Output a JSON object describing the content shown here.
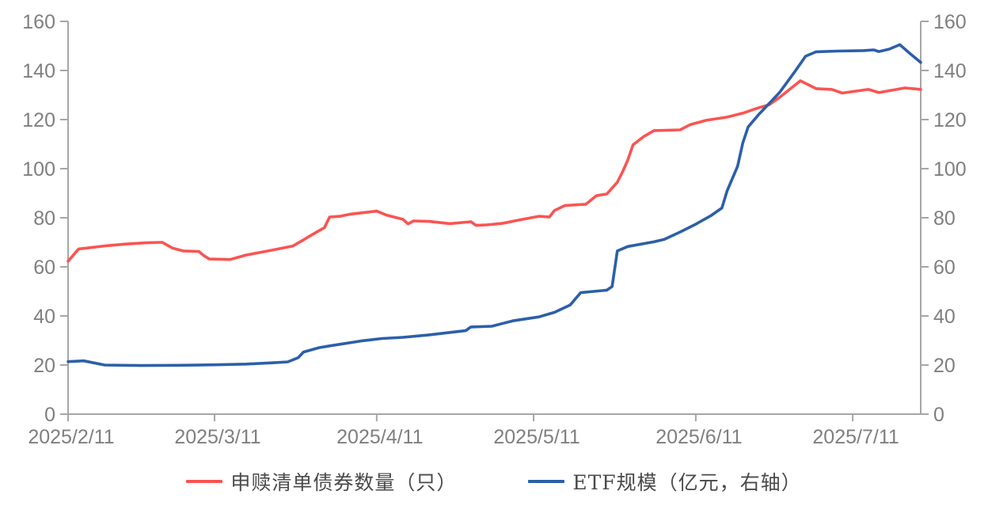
{
  "colors": {
    "red_series": "#FA5452",
    "blue_series": "#2C5FA9",
    "axis_line": "#A6A6A6",
    "tick_text": "#7F7F7F",
    "legend_text": "#4A4A4A",
    "background": "#FFFFFF"
  },
  "legend": {
    "items": [
      {
        "label": "申赎清单债券数量（只）",
        "color": "#FA5452"
      },
      {
        "label": "ETF规模（亿元，右轴）",
        "color": "#2C5FA9"
      }
    ]
  },
  "chart_data": {
    "type": "line",
    "title": "",
    "xlabel": "",
    "ylabel": "",
    "grid": false,
    "legend_position": "bottom",
    "x_axis": {
      "start": "2025/2/11",
      "end": "2025/7/24",
      "ticks": [
        "2025/2/11",
        "2025/3/11",
        "2025/4/11",
        "2025/5/11",
        "2025/6/11",
        "2025/7/11"
      ]
    },
    "y_axis_left": {
      "min": 0,
      "max": 160,
      "ticks": [
        0,
        20,
        40,
        60,
        80,
        100,
        120,
        140,
        160
      ]
    },
    "y_axis_right": {
      "min": 0,
      "max": 160,
      "ticks": [
        0,
        20,
        40,
        60,
        80,
        100,
        120,
        140,
        160
      ]
    },
    "series": [
      {
        "name": "申赎清单债券数量（只）",
        "axis": "left",
        "color": "#FA5452",
        "points": [
          [
            "2025/2/11",
            62.3
          ],
          [
            "2025/2/13",
            67.3
          ],
          [
            "2025/2/16",
            68.0
          ],
          [
            "2025/2/18",
            68.5
          ],
          [
            "2025/2/22",
            69.3
          ],
          [
            "2025/2/26",
            69.8
          ],
          [
            "2025/3/1",
            70.0
          ],
          [
            "2025/3/3",
            67.6
          ],
          [
            "2025/3/5",
            66.5
          ],
          [
            "2025/3/8",
            66.3
          ],
          [
            "2025/3/9",
            64.5
          ],
          [
            "2025/3/10",
            63.2
          ],
          [
            "2025/3/14",
            63.0
          ],
          [
            "2025/3/17",
            64.8
          ],
          [
            "2025/3/22",
            66.8
          ],
          [
            "2025/3/26",
            68.5
          ],
          [
            "2025/3/28",
            71.0
          ],
          [
            "2025/3/30",
            73.5
          ],
          [
            "2025/4/1",
            76.0
          ],
          [
            "2025/4/2",
            80.3
          ],
          [
            "2025/4/4",
            80.6
          ],
          [
            "2025/4/6",
            81.5
          ],
          [
            "2025/4/11",
            82.7
          ],
          [
            "2025/4/13",
            81.0
          ],
          [
            "2025/4/16",
            79.4
          ],
          [
            "2025/4/17",
            77.5
          ],
          [
            "2025/4/18",
            78.7
          ],
          [
            "2025/4/21",
            78.5
          ],
          [
            "2025/4/25",
            77.6
          ],
          [
            "2025/4/29",
            78.4
          ],
          [
            "2025/4/30",
            76.9
          ],
          [
            "2025/5/2",
            77.1
          ],
          [
            "2025/5/5",
            77.7
          ],
          [
            "2025/5/8",
            79.0
          ],
          [
            "2025/5/12",
            80.6
          ],
          [
            "2025/5/14",
            80.3
          ],
          [
            "2025/5/15",
            83.0
          ],
          [
            "2025/5/17",
            85.0
          ],
          [
            "2025/5/21",
            85.5
          ],
          [
            "2025/5/23",
            89.0
          ],
          [
            "2025/5/25",
            89.7
          ],
          [
            "2025/5/27",
            94.5
          ],
          [
            "2025/5/28",
            98.7
          ],
          [
            "2025/5/29",
            103.5
          ],
          [
            "2025/5/30",
            109.7
          ],
          [
            "2025/6/1",
            113.0
          ],
          [
            "2025/6/3",
            115.5
          ],
          [
            "2025/6/8",
            115.8
          ],
          [
            "2025/6/10",
            118.0
          ],
          [
            "2025/6/13",
            119.7
          ],
          [
            "2025/6/17",
            121.0
          ],
          [
            "2025/6/20",
            122.6
          ],
          [
            "2025/6/23",
            124.8
          ],
          [
            "2025/6/25",
            126.0
          ],
          [
            "2025/6/27",
            129.0
          ],
          [
            "2025/7/1",
            135.8
          ],
          [
            "2025/7/4",
            132.6
          ],
          [
            "2025/7/7",
            132.3
          ],
          [
            "2025/7/9",
            130.8
          ],
          [
            "2025/7/14",
            132.3
          ],
          [
            "2025/7/16",
            131.0
          ],
          [
            "2025/7/21",
            132.9
          ],
          [
            "2025/7/24",
            132.3
          ]
        ]
      },
      {
        "name": "ETF规模（亿元，右轴）",
        "axis": "right",
        "color": "#2C5FA9",
        "points": [
          [
            "2025/2/11",
            21.4
          ],
          [
            "2025/2/14",
            21.7
          ],
          [
            "2025/2/18",
            20.0
          ],
          [
            "2025/2/25",
            19.8
          ],
          [
            "2025/3/4",
            19.9
          ],
          [
            "2025/3/11",
            20.1
          ],
          [
            "2025/3/17",
            20.4
          ],
          [
            "2025/3/22",
            20.9
          ],
          [
            "2025/3/25",
            21.3
          ],
          [
            "2025/3/27",
            23.0
          ],
          [
            "2025/3/28",
            25.3
          ],
          [
            "2025/3/31",
            27.1
          ],
          [
            "2025/4/2",
            27.8
          ],
          [
            "2025/4/8",
            29.8
          ],
          [
            "2025/4/12",
            30.8
          ],
          [
            "2025/4/16",
            31.3
          ],
          [
            "2025/4/21",
            32.3
          ],
          [
            "2025/4/26",
            33.5
          ],
          [
            "2025/4/28",
            34.0
          ],
          [
            "2025/4/29",
            35.5
          ],
          [
            "2025/5/3",
            35.8
          ],
          [
            "2025/5/7",
            38.0
          ],
          [
            "2025/5/12",
            39.6
          ],
          [
            "2025/5/15",
            41.5
          ],
          [
            "2025/5/18",
            44.5
          ],
          [
            "2025/5/20",
            49.5
          ],
          [
            "2025/5/25",
            50.5
          ],
          [
            "2025/5/26",
            52.0
          ],
          [
            "2025/5/27",
            66.5
          ],
          [
            "2025/5/29",
            68.3
          ],
          [
            "2025/6/3",
            70.2
          ],
          [
            "2025/6/5",
            71.2
          ],
          [
            "2025/6/8",
            74.2
          ],
          [
            "2025/6/11",
            77.4
          ],
          [
            "2025/6/14",
            81.0
          ],
          [
            "2025/6/16",
            84.0
          ],
          [
            "2025/6/17",
            91.0
          ],
          [
            "2025/6/19",
            101.0
          ],
          [
            "2025/6/20",
            110.5
          ],
          [
            "2025/6/21",
            117.0
          ],
          [
            "2025/6/23",
            122.0
          ],
          [
            "2025/6/25",
            126.5
          ],
          [
            "2025/6/27",
            131.0
          ],
          [
            "2025/6/30",
            139.7
          ],
          [
            "2025/7/2",
            145.8
          ],
          [
            "2025/7/4",
            147.6
          ],
          [
            "2025/7/8",
            147.9
          ],
          [
            "2025/7/13",
            148.1
          ],
          [
            "2025/7/15",
            148.4
          ],
          [
            "2025/7/16",
            147.7
          ],
          [
            "2025/7/18",
            148.7
          ],
          [
            "2025/7/20",
            150.5
          ],
          [
            "2025/7/22",
            146.8
          ],
          [
            "2025/7/24",
            143.3
          ]
        ]
      }
    ]
  }
}
